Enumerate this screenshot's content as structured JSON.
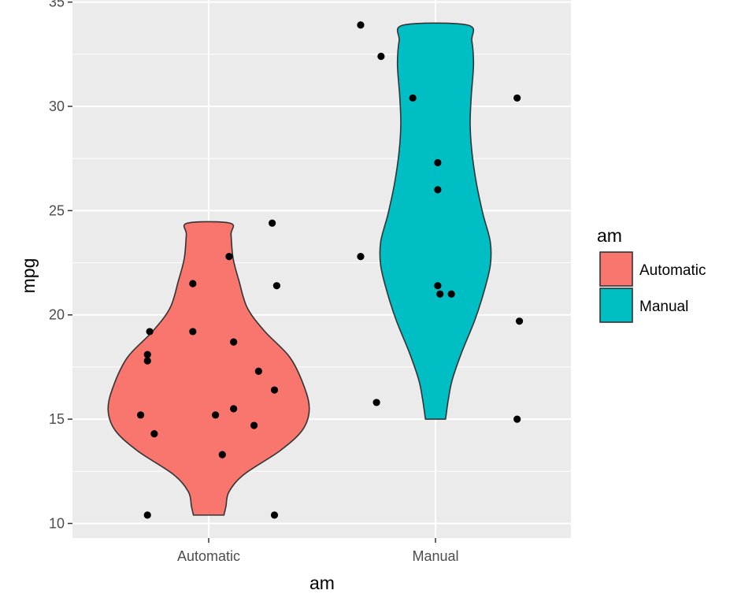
{
  "chart_data": {
    "type": "violin",
    "title": "",
    "xlabel": "am",
    "ylabel": "mpg",
    "categories": [
      "Automatic",
      "Manual"
    ],
    "ylim": [
      9.3,
      35.1
    ],
    "yticks": [
      10,
      15,
      20,
      25,
      30,
      35
    ],
    "grid": true,
    "background": "#EBEBEB",
    "legend": {
      "title": "am",
      "position": "right",
      "entries": [
        {
          "label": "Automatic",
          "color": "#F8766D"
        },
        {
          "label": "Manual",
          "color": "#00BFC4"
        }
      ]
    },
    "series": [
      {
        "name": "Automatic",
        "color": "#F8766D",
        "range": [
          10.4,
          24.4
        ],
        "points": [
          {
            "x": 0.7,
            "y": 15.2
          },
          {
            "x": 0.74,
            "y": 19.2
          },
          {
            "x": 0.73,
            "y": 18.1
          },
          {
            "x": 0.73,
            "y": 17.8
          },
          {
            "x": 0.76,
            "y": 14.3
          },
          {
            "x": 0.73,
            "y": 10.4
          },
          {
            "x": 0.93,
            "y": 21.5
          },
          {
            "x": 0.93,
            "y": 19.2
          },
          {
            "x": 1.03,
            "y": 15.2
          },
          {
            "x": 1.06,
            "y": 13.3
          },
          {
            "x": 1.09,
            "y": 22.8
          },
          {
            "x": 1.11,
            "y": 18.7
          },
          {
            "x": 1.11,
            "y": 15.5
          },
          {
            "x": 1.2,
            "y": 14.7
          },
          {
            "x": 1.22,
            "y": 17.3
          },
          {
            "x": 1.29,
            "y": 16.4
          },
          {
            "x": 1.28,
            "y": 24.4
          },
          {
            "x": 1.3,
            "y": 21.4
          },
          {
            "x": 1.29,
            "y": 10.4
          }
        ]
      },
      {
        "name": "Manual",
        "color": "#00BFC4",
        "range": [
          15.0,
          33.9
        ],
        "points": [
          {
            "x": 1.67,
            "y": 33.9
          },
          {
            "x": 1.76,
            "y": 32.4
          },
          {
            "x": 1.67,
            "y": 22.8
          },
          {
            "x": 1.74,
            "y": 15.8
          },
          {
            "x": 1.9,
            "y": 30.4
          },
          {
            "x": 2.01,
            "y": 27.3
          },
          {
            "x": 2.01,
            "y": 26.0
          },
          {
            "x": 2.01,
            "y": 21.4
          },
          {
            "x": 2.02,
            "y": 21.0
          },
          {
            "x": 2.07,
            "y": 21.0
          },
          {
            "x": 2.36,
            "y": 30.4
          },
          {
            "x": 2.37,
            "y": 19.7
          },
          {
            "x": 2.36,
            "y": 15.0
          }
        ]
      }
    ]
  }
}
